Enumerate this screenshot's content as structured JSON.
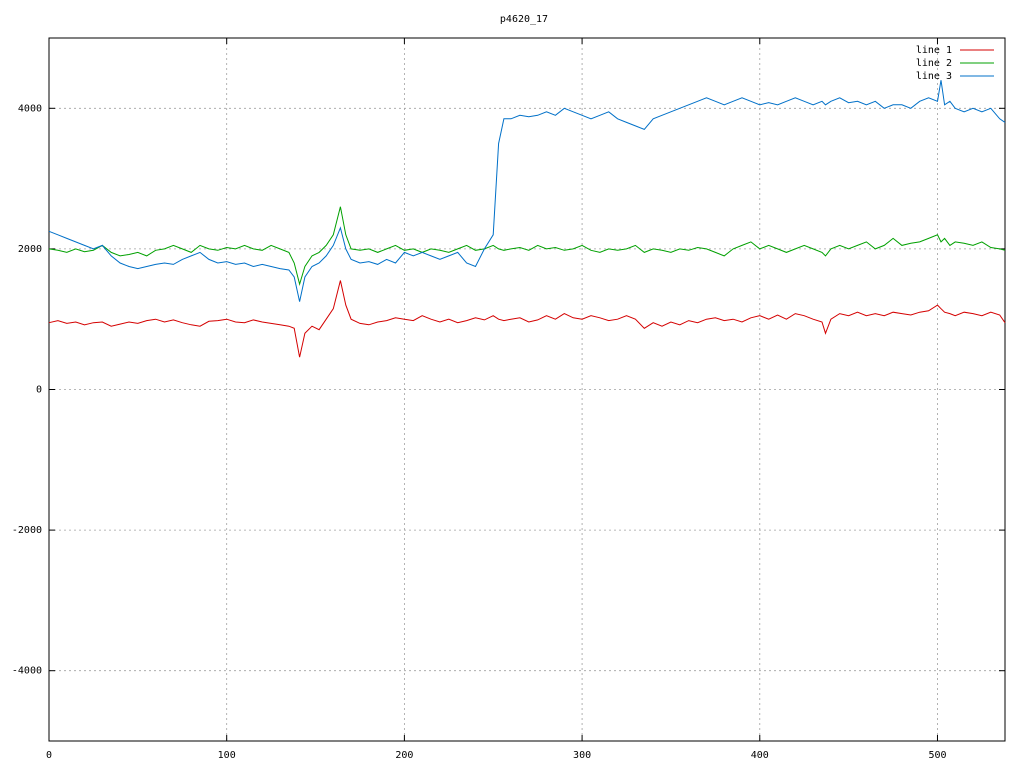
{
  "chart_data": {
    "type": "line",
    "title": "p4620_17",
    "x": [
      0,
      5,
      10,
      15,
      20,
      25,
      30,
      35,
      40,
      45,
      50,
      55,
      60,
      65,
      70,
      75,
      80,
      85,
      90,
      95,
      100,
      105,
      110,
      115,
      120,
      125,
      130,
      135,
      138,
      141,
      144,
      148,
      152,
      156,
      160,
      164,
      167,
      170,
      175,
      180,
      185,
      190,
      195,
      200,
      205,
      210,
      215,
      220,
      225,
      230,
      235,
      240,
      245,
      250,
      253,
      256,
      260,
      265,
      270,
      275,
      280,
      285,
      290,
      295,
      300,
      305,
      310,
      315,
      320,
      325,
      330,
      335,
      340,
      345,
      350,
      355,
      360,
      365,
      370,
      375,
      380,
      385,
      390,
      395,
      400,
      405,
      410,
      415,
      420,
      425,
      430,
      435,
      437,
      440,
      445,
      450,
      455,
      460,
      465,
      470,
      475,
      480,
      485,
      490,
      495,
      500,
      502,
      504,
      507,
      510,
      515,
      520,
      525,
      530,
      535,
      538
    ],
    "series": [
      {
        "name": "line 1",
        "color": "#d40000",
        "values": [
          950,
          980,
          940,
          960,
          920,
          950,
          960,
          900,
          930,
          960,
          940,
          980,
          1000,
          960,
          990,
          950,
          920,
          900,
          970,
          980,
          1000,
          960,
          950,
          990,
          960,
          940,
          920,
          900,
          870,
          460,
          800,
          900,
          850,
          1000,
          1150,
          1550,
          1200,
          1000,
          940,
          920,
          960,
          980,
          1020,
          1000,
          980,
          1050,
          1000,
          960,
          1000,
          950,
          980,
          1020,
          990,
          1050,
          1000,
          980,
          1000,
          1020,
          960,
          990,
          1050,
          1000,
          1080,
          1020,
          1000,
          1050,
          1020,
          980,
          1000,
          1050,
          1000,
          870,
          950,
          900,
          960,
          920,
          980,
          950,
          1000,
          1020,
          980,
          1000,
          960,
          1020,
          1050,
          1000,
          1060,
          1000,
          1080,
          1050,
          1000,
          960,
          800,
          1000,
          1080,
          1050,
          1100,
          1050,
          1080,
          1050,
          1100,
          1080,
          1060,
          1100,
          1120,
          1200,
          1150,
          1100,
          1080,
          1050,
          1100,
          1080,
          1050,
          1100,
          1060,
          950
        ]
      },
      {
        "name": "line 2",
        "color": "#00a000",
        "values": [
          2000,
          1980,
          1950,
          2000,
          1960,
          1980,
          2050,
          1950,
          1900,
          1920,
          1950,
          1900,
          1980,
          2000,
          2050,
          2000,
          1950,
          2050,
          2000,
          1980,
          2020,
          2000,
          2050,
          2000,
          1980,
          2050,
          2000,
          1950,
          1800,
          1500,
          1750,
          1900,
          1950,
          2050,
          2200,
          2600,
          2200,
          2000,
          1980,
          2000,
          1950,
          2000,
          2050,
          1980,
          2000,
          1950,
          2000,
          1980,
          1950,
          2000,
          2050,
          1980,
          2000,
          2050,
          2000,
          1980,
          2000,
          2020,
          1980,
          2050,
          2000,
          2020,
          1980,
          2000,
          2050,
          1980,
          1950,
          2000,
          1980,
          2000,
          2050,
          1950,
          2000,
          1980,
          1950,
          2000,
          1980,
          2020,
          2000,
          1950,
          1900,
          2000,
          2050,
          2100,
          2000,
          2050,
          2000,
          1950,
          2000,
          2050,
          2000,
          1950,
          1900,
          2000,
          2050,
          2000,
          2050,
          2100,
          2000,
          2050,
          2150,
          2050,
          2080,
          2100,
          2150,
          2200,
          2100,
          2150,
          2050,
          2100,
          2080,
          2050,
          2100,
          2020,
          2000,
          1980
        ]
      },
      {
        "name": "line 3",
        "color": "#0070c8",
        "values": [
          2250,
          2200,
          2150,
          2100,
          2050,
          2000,
          2050,
          1900,
          1800,
          1750,
          1720,
          1750,
          1780,
          1800,
          1780,
          1850,
          1900,
          1950,
          1850,
          1800,
          1820,
          1780,
          1800,
          1750,
          1780,
          1750,
          1720,
          1700,
          1600,
          1250,
          1600,
          1750,
          1800,
          1900,
          2050,
          2300,
          2000,
          1850,
          1800,
          1820,
          1780,
          1850,
          1800,
          1950,
          1900,
          1950,
          1900,
          1850,
          1900,
          1950,
          1800,
          1750,
          2000,
          2200,
          3500,
          3850,
          3850,
          3900,
          3880,
          3900,
          3950,
          3900,
          4000,
          3950,
          3900,
          3850,
          3900,
          3950,
          3850,
          3800,
          3750,
          3700,
          3850,
          3900,
          3950,
          4000,
          4050,
          4100,
          4150,
          4100,
          4050,
          4100,
          4150,
          4100,
          4050,
          4080,
          4050,
          4100,
          4150,
          4100,
          4050,
          4100,
          4050,
          4100,
          4150,
          4080,
          4100,
          4050,
          4100,
          4000,
          4050,
          4050,
          4000,
          4100,
          4150,
          4100,
          4400,
          4050,
          4100,
          4000,
          3950,
          4000,
          3950,
          4000,
          3850,
          3800
        ]
      }
    ],
    "xlim": [
      0,
      538
    ],
    "xticks": [
      0,
      100,
      200,
      300,
      400,
      500
    ],
    "ylim": [
      -5000,
      5000
    ],
    "yticks": [
      -4000,
      -2000,
      0,
      2000,
      4000
    ],
    "grid": true,
    "legend": "upper right"
  }
}
